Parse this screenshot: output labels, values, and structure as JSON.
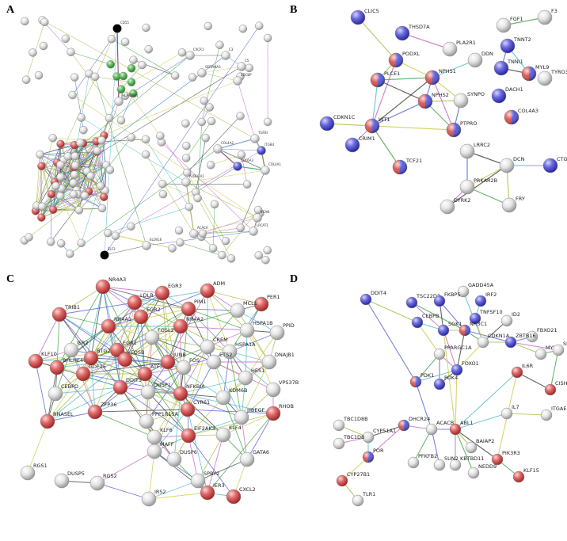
{
  "panels": [
    {
      "label": "A",
      "nodes": [
        "CD55",
        "HLA-DRB1",
        "CXCR1",
        "C3",
        "C5",
        "SERPINA3",
        "SDCBP",
        "TGFBI",
        "ITGB4",
        "COL4A2",
        "COL6A3",
        "COL4A1",
        "ALDH1A1",
        "VCAN",
        "ACACA",
        "LPCAT1",
        "ELOVL6",
        "ELF3"
      ]
    },
    {
      "label": "B",
      "nodes": [
        "CLIC5",
        "THSD7A",
        "PLA2R1",
        "FGF1",
        "F3",
        "TNNT2",
        "PODXL",
        "DDN",
        "TNNI1",
        "MYL9",
        "NPHS1",
        "PLCE1",
        "TYRO3",
        "DACH1",
        "SYNPO",
        "NPHS2",
        "COL4A3",
        "CDKN1C",
        "WT1",
        "PTPRO",
        "LRRC2",
        "DCN",
        "CTGF",
        "CRIM1",
        "PRKAR2B",
        "TCF21",
        "DYRK2",
        "FRY"
      ]
    },
    {
      "label": "C",
      "nodes": [
        "NR4A3",
        "EGR3",
        "ADM",
        "LDLR",
        "PIM1",
        "PER1",
        "MCL1",
        "TRIB1",
        "EGR2",
        "NR4A1",
        "NR4A2",
        "FOSL2",
        "HSPA1B",
        "PPID",
        "IER2",
        "KLF10",
        "BHLHE40",
        "CREM",
        "HSPA1A",
        "EGR1",
        "FOS",
        "ETS2",
        "DNAJB1",
        "ATF3",
        "FOSB",
        "BTG2",
        "GDF15",
        "JUNB",
        "HES1",
        "VPS37B",
        "CEBPD",
        "DDIT3",
        "DUSP1",
        "NFKBIA",
        "KDM6B",
        "RHOB",
        "ZFP36",
        "RNASEL",
        "CYR61",
        "PPP1R15A",
        "HBEGF",
        "KLF4",
        "EIF2AK3",
        "KLF6",
        "MAFF",
        "GATA6",
        "RGS1",
        "DUSP5",
        "RGS2",
        "DUSP6",
        "SPRY2",
        "IER3",
        "CXCL2",
        "IRS2"
      ]
    },
    {
      "label": "D",
      "nodes": [
        "DDIT4",
        "GADD45A",
        "TSC22D3",
        "FKBP5",
        "IRF2",
        "TNFSF10",
        "ID2",
        "FBXO21",
        "CEBPB",
        "SGK1",
        "NR3C1",
        "CDKN1A",
        "ZBTB16",
        "MYLIP",
        "SPSB1",
        "PPARGC1A",
        "FOXO1",
        "PDK1",
        "PDK4",
        "IL6R",
        "CISH",
        "IL7",
        "ITGAE",
        "TBC1D8B",
        "DHCR24",
        "ACACB",
        "ABL1",
        "CYP51A1",
        "TBC1D8",
        "BAIAP2",
        "POR",
        "KBTBD11",
        "NEDD9",
        "PIK3R3",
        "KLF15",
        "PFKFB2",
        "SUN2",
        "CYP27B1",
        "TLR1"
      ]
    }
  ]
}
